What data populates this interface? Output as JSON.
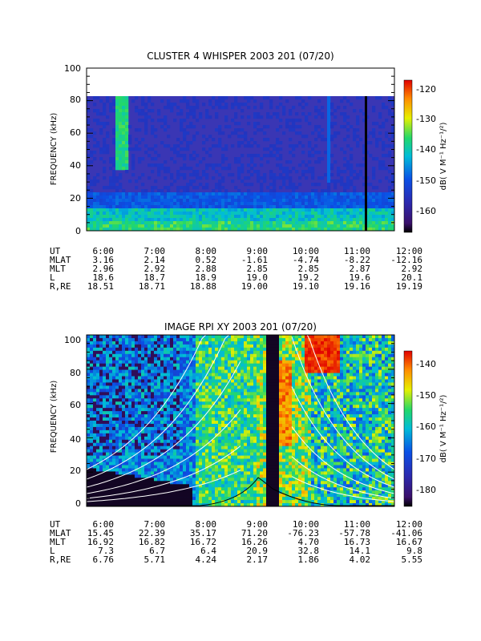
{
  "figure": {
    "panels": [
      {
        "title": "CLUSTER 4 WHISPER 2003 201 (07/20)",
        "ylabel": "FREQUENCY (kHz)",
        "colorbar_label": "dB( V M⁻¹ Hz⁻¹/²)",
        "colorbar_ticks": [
          "-120",
          "-130",
          "-140",
          "-150",
          "-160"
        ],
        "y_ticks": [
          "0",
          "20",
          "40",
          "60",
          "80",
          "100"
        ],
        "table": {
          "row_labels": [
            "UT",
            "MLAT",
            "MLT",
            "L",
            "R,RE"
          ],
          "rows": [
            [
              "6:00",
              "7:00",
              "8:00",
              "9:00",
              "10:00",
              "11:00",
              "12:00"
            ],
            [
              "3.16",
              "2.14",
              "0.52",
              "-1.61",
              "-4.74",
              "-8.22",
              "-12.16"
            ],
            [
              "2.96",
              "2.92",
              "2.88",
              "2.85",
              "2.85",
              "2.87",
              "2.92"
            ],
            [
              "18.6",
              "18.7",
              "18.9",
              "19.0",
              "19.2",
              "19.6",
              "20.1"
            ],
            [
              "18.51",
              "18.71",
              "18.88",
              "19.00",
              "19.10",
              "19.16",
              "19.19"
            ]
          ]
        }
      },
      {
        "title": "IMAGE RPI XY 2003 201 (07/20)",
        "ylabel": "FREQUENCY (kHz)",
        "colorbar_label": "dB( V M⁻¹ Hz⁻¹/²)",
        "colorbar_ticks": [
          "-140",
          "-150",
          "-160",
          "-170",
          "-180"
        ],
        "y_ticks": [
          "0",
          "20",
          "40",
          "60",
          "80",
          "100"
        ],
        "table": {
          "row_labels": [
            "UT",
            "MLAT",
            "MLT",
            "L",
            "R,RE"
          ],
          "rows": [
            [
              "6:00",
              "7:00",
              "8:00",
              "9:00",
              "10:00",
              "11:00",
              "12:00"
            ],
            [
              "15.45",
              "22.39",
              "35.17",
              "71.20",
              "-76.23",
              "-57.78",
              "-41.06"
            ],
            [
              "16.92",
              "16.82",
              "16.72",
              "16.26",
              "4.70",
              "16.73",
              "16.67"
            ],
            [
              "7.3",
              "6.7",
              "6.4",
              "20.9",
              "32.8",
              "14.1",
              "9.8"
            ],
            [
              "6.76",
              "5.71",
              "4.24",
              "2.17",
              "1.86",
              "4.02",
              "5.55"
            ]
          ]
        }
      }
    ]
  },
  "chart_data": [
    {
      "type": "heatmap",
      "title": "CLUSTER 4 WHISPER 2003 201 (07/20)",
      "xlabel": "UT",
      "ylabel": "FREQUENCY (kHz)",
      "xlim": [
        "6:00",
        "12:00"
      ],
      "ylim": [
        0,
        100
      ],
      "data_top_khz": 80,
      "colorbar": {
        "label": "dB( V M⁻¹ Hz⁻¹/²)",
        "range": [
          -166,
          -118
        ],
        "ticks": [
          -120,
          -130,
          -140,
          -150,
          -160
        ]
      },
      "features": [
        {
          "kind": "background",
          "level_db": -160
        },
        {
          "kind": "low_freq_band",
          "freq_khz": [
            0,
            12
          ],
          "level_db": -146
        },
        {
          "kind": "broadband_burst",
          "ut": "6:40",
          "freq_khz": [
            40,
            80
          ],
          "level_db": -142
        },
        {
          "kind": "broadband_burst",
          "ut": "10:40",
          "freq_khz": [
            30,
            80
          ],
          "level_db": -150
        },
        {
          "kind": "data_gap",
          "ut": "11:25"
        }
      ],
      "series": []
    },
    {
      "type": "heatmap",
      "title": "IMAGE RPI XY 2003 201 (07/20)",
      "xlabel": "UT",
      "ylabel": "FREQUENCY (kHz)",
      "xlim": [
        "6:00",
        "12:00"
      ],
      "ylim": [
        0,
        100
      ],
      "colorbar": {
        "label": "dB( V M⁻¹ Hz⁻¹/²)",
        "range": [
          -185,
          -135
        ],
        "ticks": [
          -140,
          -150,
          -160,
          -170,
          -180
        ]
      },
      "features": [
        {
          "kind": "low_level_region",
          "ut": [
            "6:00",
            "8:05"
          ],
          "level_db": -185
        },
        {
          "kind": "strong_emission",
          "ut": [
            "9:50",
            "10:05"
          ],
          "freq_khz": [
            40,
            90
          ],
          "level_db": -140
        },
        {
          "kind": "strong_emission",
          "ut": [
            "10:35",
            "11:10"
          ],
          "freq_khz": [
            80,
            100
          ],
          "level_db": -138
        },
        {
          "kind": "noise_column",
          "ut": "9:35",
          "level_db": -185
        }
      ],
      "overlay_curves": "white gyro-harmonic curves, black plasma-frequency curve"
    }
  ]
}
